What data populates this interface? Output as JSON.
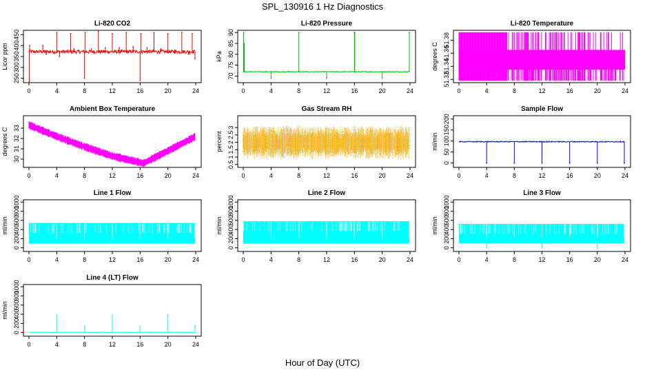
{
  "title": "SPL_130916  1 Hz Diagnostics",
  "xlabel": "Hour of Day (UTC)",
  "x_ticks": [
    0,
    4,
    8,
    12,
    16,
    20,
    24
  ],
  "chart_data": [
    {
      "type": "line",
      "title": "Li-820 CO2",
      "ylabel": "Licor ppm",
      "color": "#ff0000",
      "xlim": [
        0,
        24
      ],
      "ylim": [
        230,
        470
      ],
      "yticks": [
        250,
        300,
        350,
        400,
        450
      ],
      "baseline": 372,
      "noise": 8,
      "spikes": [
        [
          0.05,
          235
        ],
        [
          0.1,
          400
        ],
        [
          2,
          400
        ],
        [
          2.5,
          360
        ],
        [
          4,
          460
        ],
        [
          4.4,
          350
        ],
        [
          6,
          455
        ],
        [
          6.5,
          385
        ],
        [
          8,
          250
        ],
        [
          8.1,
          460
        ],
        [
          9,
          385
        ],
        [
          10,
          465
        ],
        [
          11,
          390
        ],
        [
          12,
          455
        ],
        [
          13,
          390
        ],
        [
          14,
          460
        ],
        [
          15,
          395
        ],
        [
          16,
          240
        ],
        [
          16.1,
          455
        ],
        [
          17,
          390
        ],
        [
          18,
          460
        ],
        [
          19,
          385
        ],
        [
          20,
          455
        ],
        [
          21,
          380
        ],
        [
          22,
          460
        ],
        [
          23,
          360
        ],
        [
          23.5,
          455
        ],
        [
          23.9,
          340
        ]
      ]
    },
    {
      "type": "line",
      "title": "Li-820 Pressure",
      "ylabel": "kPa",
      "color": "#00c000",
      "xlim": [
        0,
        24
      ],
      "ylim": [
        67,
        91
      ],
      "yticks": [
        70,
        75,
        80,
        85,
        90
      ],
      "baseline": 72,
      "noise": 0.15,
      "spikes": [
        [
          0.05,
          90
        ],
        [
          0.15,
          85
        ],
        [
          4,
          69
        ],
        [
          8,
          90
        ],
        [
          8.1,
          72
        ],
        [
          12,
          69
        ],
        [
          16,
          90
        ],
        [
          16.05,
          90
        ],
        [
          20,
          69
        ],
        [
          23.9,
          90
        ]
      ]
    },
    {
      "type": "band",
      "title": "Li-820 Temperature",
      "ylabel": "degrees C",
      "color": "#ff00ff",
      "xlim": [
        0,
        24
      ],
      "ylim": [
        51.315,
        51.395
      ],
      "yticks": [
        51.32,
        51.34,
        51.36,
        51.38
      ],
      "band_low": 51.335,
      "band_high": 51.365,
      "band_full_low": 51.318,
      "band_full_high": 51.392,
      "full_ranges": [
        [
          0,
          7
        ],
        [
          7,
          12,
          0.5
        ],
        [
          12,
          24,
          0.4
        ]
      ]
    },
    {
      "type": "band",
      "title": "Ambient Box Temperature",
      "ylabel": "degrees C",
      "color": "#ff00ff",
      "xlim": [
        0,
        24
      ],
      "ylim": [
        29.2,
        34.2
      ],
      "yticks": [
        30,
        31,
        32,
        33
      ],
      "trend": [
        [
          0,
          33.3
        ],
        [
          4,
          32.2
        ],
        [
          8,
          31.2
        ],
        [
          12,
          30.3
        ],
        [
          16.5,
          29.6
        ],
        [
          20,
          30.8
        ],
        [
          24,
          32.2
        ]
      ],
      "width": 0.8
    },
    {
      "type": "band",
      "title": "Gas Stream RH",
      "ylabel": "percent",
      "color": "#ffaa00",
      "xlim": [
        0,
        24
      ],
      "ylim": [
        0.3,
        3.8
      ],
      "yticks": [
        0.5,
        1.0,
        1.5,
        2.0,
        2.5,
        3.0
      ],
      "mid": 2.0,
      "width": 1.5,
      "dotted": true
    },
    {
      "type": "line",
      "title": "Sample Flow",
      "ylabel": "ml/min",
      "color": "#0000ff",
      "xlim": [
        0,
        24
      ],
      "ylim": [
        -20,
        215
      ],
      "yticks": [
        0,
        50,
        100,
        150,
        200
      ],
      "baseline": 97,
      "noise": 2,
      "spikes": [
        [
          4,
          0
        ],
        [
          8,
          0
        ],
        [
          12,
          0
        ],
        [
          16,
          0
        ],
        [
          20,
          0
        ],
        [
          23.9,
          0
        ]
      ]
    },
    {
      "type": "band",
      "title": "Line 1 Flow",
      "ylabel": "ml/min",
      "color": "#00ffff",
      "xlim": [
        0,
        24
      ],
      "ylim": [
        -80,
        1050
      ],
      "yticks": [
        0,
        200,
        400,
        600,
        800,
        1000
      ],
      "band_low": 90,
      "band_high": 540,
      "gaps": [
        4,
        8,
        12,
        16,
        20,
        23.9
      ]
    },
    {
      "type": "band",
      "title": "Line 2 Flow",
      "ylabel": "ml/min",
      "color": "#00ffff",
      "xlim": [
        0,
        24
      ],
      "ylim": [
        -80,
        1050
      ],
      "yticks": [
        0,
        200,
        400,
        600,
        800,
        1000
      ],
      "band_low": 90,
      "band_high": 580,
      "gaps": [
        4,
        8,
        12,
        16,
        20,
        23.9
      ]
    },
    {
      "type": "band",
      "title": "Line 3 Flow",
      "ylabel": "ml/min",
      "color": "#00ffff",
      "xlim": [
        0,
        24
      ],
      "ylim": [
        -80,
        1050
      ],
      "yticks": [
        0,
        200,
        400,
        600,
        800,
        1000
      ],
      "band_low": 100,
      "band_high": 520,
      "gaps": [
        4,
        8,
        12,
        16,
        20,
        23.9
      ],
      "dips": [
        [
          4,
          -20
        ],
        [
          12,
          -10
        ],
        [
          20,
          -30
        ]
      ]
    },
    {
      "type": "line",
      "title": "Line 4 (LT) Flow",
      "ylabel": "ml/min",
      "color": "#00ffff",
      "xlim": [
        0,
        24
      ],
      "ylim": [
        -80,
        1050
      ],
      "yticks": [
        0,
        200,
        400,
        600,
        800,
        1000
      ],
      "baseline": 5,
      "noise": 2,
      "spikes": [
        [
          4,
          380
        ],
        [
          8,
          130
        ],
        [
          12,
          380
        ],
        [
          16,
          130
        ],
        [
          20,
          390
        ],
        [
          23.9,
          150
        ]
      ]
    }
  ]
}
